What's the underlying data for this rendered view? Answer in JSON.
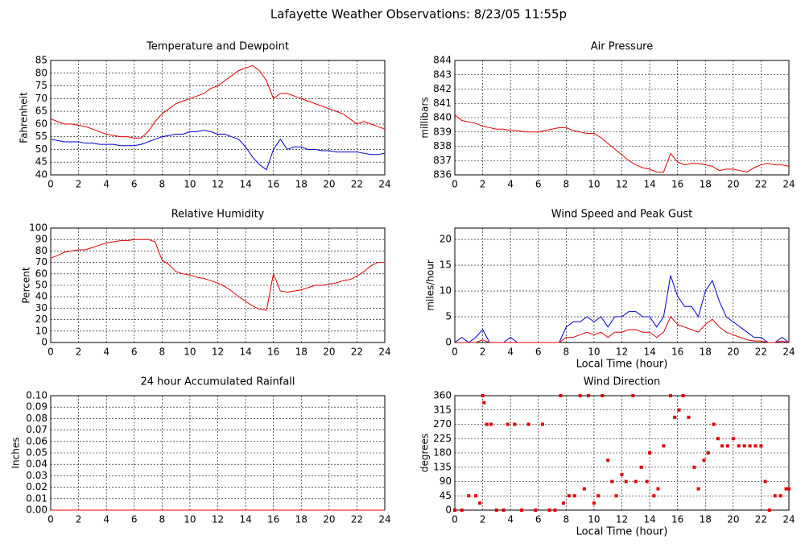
{
  "title": "Lafayette Weather Observations: 8/23/05 11:55p",
  "chart_data": [
    {
      "type": "line",
      "title": "Temperature and Dewpoint",
      "y_label": "Fahrenheit",
      "x": [
        0,
        0.5,
        1,
        1.5,
        2,
        2.5,
        3,
        3.5,
        4,
        4.5,
        5,
        5.5,
        6,
        6.5,
        7,
        7.5,
        8,
        8.5,
        9,
        9.5,
        10,
        10.5,
        11,
        11.5,
        12,
        12.5,
        13,
        13.5,
        14,
        14.5,
        15,
        15.5,
        16,
        16.5,
        17,
        17.5,
        18,
        18.5,
        19,
        19.5,
        20,
        20.5,
        21,
        21.5,
        22,
        22.5,
        23,
        23.5,
        24
      ],
      "series": [
        {
          "color": "#e00000",
          "values": [
            62,
            61,
            60,
            60,
            59.5,
            59,
            58,
            57,
            56,
            55.5,
            55,
            55,
            54.5,
            54.5,
            57,
            61,
            64,
            66,
            68,
            69,
            70,
            71,
            72,
            74,
            75,
            77,
            79,
            81,
            82,
            83,
            81,
            77,
            70,
            72,
            72,
            71,
            70,
            69,
            68,
            67,
            66,
            65,
            64,
            62,
            60,
            61,
            60,
            59,
            58
          ]
        },
        {
          "color": "#0000d0",
          "values": [
            54,
            53.5,
            53,
            53,
            53,
            52.5,
            52.5,
            52,
            52,
            52,
            51.5,
            51.5,
            51.5,
            52,
            53,
            54,
            55,
            55.5,
            56,
            56,
            57,
            57,
            57.5,
            57,
            56,
            56,
            55,
            54,
            51,
            47,
            44,
            42,
            50,
            54,
            50,
            51,
            51,
            50,
            50,
            49.5,
            49.5,
            49,
            49,
            49,
            49,
            48.5,
            48,
            48,
            48.5
          ]
        }
      ],
      "xlim": [
        0,
        24
      ],
      "xticks": [
        0,
        2,
        4,
        6,
        8,
        10,
        12,
        14,
        16,
        18,
        20,
        22,
        24
      ],
      "ylim": [
        40,
        85
      ],
      "yticks": [
        40,
        45,
        50,
        55,
        60,
        65,
        70,
        75,
        80,
        85
      ],
      "grid": true
    },
    {
      "type": "line",
      "title": "Air Pressure",
      "y_label": "millibars",
      "x": [
        0,
        0.5,
        1,
        1.5,
        2,
        2.5,
        3,
        3.5,
        4,
        4.5,
        5,
        5.5,
        6,
        6.5,
        7,
        7.5,
        8,
        8.5,
        9,
        9.5,
        10,
        10.5,
        11,
        11.5,
        12,
        12.5,
        13,
        13.5,
        14,
        14.5,
        15,
        15.5,
        16,
        16.5,
        17,
        17.5,
        18,
        18.5,
        19,
        19.5,
        20,
        20.5,
        21,
        21.5,
        22,
        22.5,
        23,
        23.5,
        24
      ],
      "series": [
        {
          "color": "#e00000",
          "values": [
            840.2,
            839.8,
            839.7,
            839.6,
            839.4,
            839.3,
            839.2,
            839.2,
            839.1,
            839.1,
            839.0,
            839.0,
            839.0,
            839.1,
            839.2,
            839.3,
            839.3,
            839.1,
            839.0,
            838.9,
            838.9,
            838.6,
            838.2,
            837.8,
            837.4,
            837.0,
            836.7,
            836.5,
            836.4,
            836.2,
            836.2,
            837.5,
            836.9,
            836.7,
            836.8,
            836.8,
            836.7,
            836.6,
            836.3,
            836.4,
            836.4,
            836.3,
            836.2,
            836.5,
            836.7,
            836.8,
            836.7,
            836.7,
            836.6
          ]
        }
      ],
      "xlim": [
        0,
        24
      ],
      "xticks": [
        0,
        2,
        4,
        6,
        8,
        10,
        12,
        14,
        16,
        18,
        20,
        22,
        24
      ],
      "ylim": [
        836,
        844
      ],
      "yticks": [
        836,
        837,
        838,
        839,
        840,
        841,
        842,
        843,
        844
      ],
      "grid": true
    },
    {
      "type": "line",
      "title": "Relative Humidity",
      "y_label": "Percent",
      "x": [
        0,
        0.5,
        1,
        1.5,
        2,
        2.5,
        3,
        3.5,
        4,
        4.5,
        5,
        5.5,
        6,
        6.5,
        7,
        7.5,
        8,
        8.5,
        9,
        9.5,
        10,
        10.5,
        11,
        11.5,
        12,
        12.5,
        13,
        13.5,
        14,
        14.5,
        15,
        15.5,
        16,
        16.5,
        17,
        17.5,
        18,
        18.5,
        19,
        19.5,
        20,
        20.5,
        21,
        21.5,
        22,
        22.5,
        23,
        23.5,
        24
      ],
      "series": [
        {
          "color": "#e00000",
          "values": [
            74,
            76,
            79,
            80,
            81,
            81,
            83,
            85,
            87,
            88,
            89,
            89,
            90,
            90,
            90,
            88,
            72,
            68,
            62,
            60,
            59,
            57,
            56,
            54,
            52,
            49,
            45,
            40,
            36,
            32,
            29,
            28,
            60,
            45,
            44,
            45,
            46,
            48,
            50,
            50,
            51,
            52,
            54,
            55,
            58,
            62,
            67,
            70,
            70
          ]
        }
      ],
      "xlim": [
        0,
        24
      ],
      "xticks": [
        0,
        2,
        4,
        6,
        8,
        10,
        12,
        14,
        16,
        18,
        20,
        22,
        24
      ],
      "ylim": [
        0,
        100
      ],
      "yticks": [
        0,
        10,
        20,
        30,
        40,
        50,
        60,
        70,
        80,
        90,
        100
      ],
      "grid": true
    },
    {
      "type": "line",
      "title": "Wind Speed and Peak Gust",
      "y_label": "miles/hour",
      "x_label": "Local Time (hour)",
      "x": [
        0,
        0.5,
        1,
        1.5,
        2,
        2.5,
        3,
        3.5,
        4,
        4.5,
        5,
        5.5,
        6,
        6.5,
        7,
        7.5,
        8,
        8.5,
        9,
        9.5,
        10,
        10.5,
        11,
        11.5,
        12,
        12.5,
        13,
        13.5,
        14,
        14.5,
        15,
        15.5,
        16,
        16.5,
        17,
        17.5,
        18,
        18.5,
        19,
        19.5,
        20,
        20.5,
        21,
        21.5,
        22,
        22.5,
        23,
        23.5,
        24
      ],
      "series": [
        {
          "color": "#0000d0",
          "values": [
            0,
            1,
            0,
            1,
            2.5,
            0,
            0,
            0,
            1,
            0,
            0,
            0,
            0,
            0,
            0,
            0,
            3,
            4,
            4,
            5,
            4,
            5,
            3,
            5,
            5,
            6,
            6,
            5,
            5,
            3,
            5,
            13,
            9,
            7,
            7,
            5,
            10,
            12,
            8,
            5,
            4,
            3,
            2,
            1,
            1,
            0,
            0,
            1,
            0
          ]
        },
        {
          "color": "#e00000",
          "values": [
            0,
            0,
            0,
            0,
            0.5,
            0,
            0,
            0,
            0,
            0,
            0,
            0,
            0,
            0,
            0,
            0,
            1,
            1,
            1.5,
            2,
            1.5,
            2,
            1,
            2,
            2,
            2.5,
            2.5,
            2,
            2,
            1,
            2,
            5,
            3.5,
            3,
            2.5,
            2,
            3.5,
            4.5,
            3,
            2,
            1.5,
            1,
            0.5,
            0.3,
            0.3,
            0,
            0,
            0.3,
            0
          ]
        }
      ],
      "xlim": [
        0,
        24
      ],
      "xticks": [
        0,
        2,
        4,
        6,
        8,
        10,
        12,
        14,
        16,
        18,
        20,
        22,
        24
      ],
      "ylim": [
        0,
        22.2
      ],
      "yticks": [
        0,
        5,
        10,
        15,
        20
      ],
      "grid": true
    },
    {
      "type": "line",
      "title": "24 hour Accumulated Rainfall",
      "y_label": "Inches",
      "x": [
        0,
        1,
        2,
        3,
        4,
        5,
        6,
        7,
        8,
        9,
        10,
        11,
        12,
        13,
        14,
        15,
        16,
        17,
        18,
        19,
        20,
        21,
        22,
        23,
        24
      ],
      "values": [
        0,
        0,
        0,
        0,
        0,
        0,
        0,
        0,
        0,
        0,
        0,
        0,
        0,
        0,
        0,
        0,
        0,
        0,
        0,
        0,
        0,
        0,
        0,
        0,
        0
      ],
      "color": "#e00000",
      "xlim": [
        0,
        24
      ],
      "xticks": [
        0,
        2,
        4,
        6,
        8,
        10,
        12,
        14,
        16,
        18,
        20,
        22,
        24
      ],
      "ylim": [
        0,
        0.1
      ],
      "yticks": [
        {
          "value": 0,
          "label": "0.00"
        },
        {
          "value": 0.01,
          "label": "0.01"
        },
        {
          "value": 0.02,
          "label": "0.02"
        },
        {
          "value": 0.03,
          "label": "0.03"
        },
        {
          "value": 0.04,
          "label": "0.04"
        },
        {
          "value": 0.05,
          "label": "0.05"
        },
        {
          "value": 0.06,
          "label": "0.06"
        },
        {
          "value": 0.07,
          "label": "0.07"
        },
        {
          "value": 0.08,
          "label": "0.08"
        },
        {
          "value": 0.09,
          "label": "0.09"
        },
        {
          "value": 0.1,
          "label": "0.10"
        }
      ],
      "grid": true
    },
    {
      "type": "scatter",
      "title": "Wind Direction",
      "y_label": "degrees",
      "x_label": "Local Time (hour)",
      "x": [
        0,
        0.5,
        1,
        1.5,
        1.8,
        2,
        2.1,
        2.3,
        2.6,
        3,
        3.5,
        3.8,
        4.3,
        4.8,
        5.3,
        5.8,
        6.3,
        6.8,
        7.2,
        7.6,
        7.8,
        8.2,
        8.6,
        9,
        9.3,
        9.6,
        10,
        10.3,
        10.6,
        11,
        11.3,
        11.6,
        12,
        12.3,
        12.8,
        13,
        13.4,
        13.8,
        14,
        14.3,
        14.6,
        15,
        15.5,
        15.8,
        16.1,
        16.4,
        16.8,
        17.2,
        17.5,
        17.9,
        18.2,
        18.6,
        18.9,
        19.2,
        19.6,
        20,
        20.4,
        20.8,
        21.2,
        21.6,
        22,
        22.3,
        22.6,
        23,
        23.4,
        23.8,
        24
      ],
      "values": [
        0,
        0,
        45,
        45,
        22,
        360,
        338,
        270,
        270,
        0,
        0,
        270,
        270,
        0,
        270,
        0,
        270,
        0,
        0,
        360,
        22,
        45,
        45,
        360,
        67,
        360,
        22,
        45,
        360,
        157,
        90,
        45,
        112,
        90,
        360,
        90,
        135,
        90,
        180,
        45,
        67,
        202,
        360,
        292,
        315,
        360,
        292,
        135,
        67,
        157,
        180,
        270,
        225,
        202,
        202,
        225,
        202,
        202,
        202,
        202,
        202,
        90,
        0,
        45,
        45,
        67,
        67
      ],
      "color": "#e00000",
      "xlim": [
        0,
        24
      ],
      "xticks": [
        0,
        2,
        4,
        6,
        8,
        10,
        12,
        14,
        16,
        18,
        20,
        22,
        24
      ],
      "ylim": [
        0,
        360
      ],
      "yticks": [
        0,
        45,
        90,
        135,
        180,
        225,
        270,
        315,
        360
      ],
      "grid": true
    }
  ]
}
